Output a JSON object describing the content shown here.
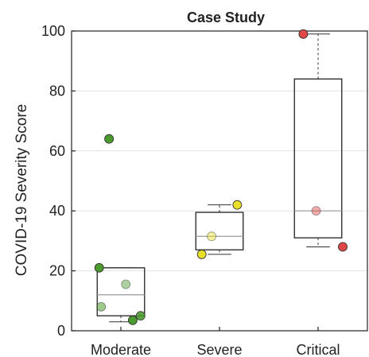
{
  "chart_data": {
    "type": "box",
    "title": "Case Study",
    "xlabel": "",
    "ylabel": "COVID-19 Severity Score",
    "ylim": [
      0,
      100
    ],
    "yticks": [
      0,
      20,
      40,
      60,
      80,
      100
    ],
    "grid": "horizontal",
    "categories": [
      "Moderate",
      "Severe",
      "Critical"
    ],
    "boxes": [
      {
        "name": "Moderate",
        "min": 3,
        "q1": 5,
        "median": 12,
        "q3": 21,
        "max": 21,
        "color": "#4a9a2e",
        "points": [
          {
            "x": -0.12,
            "y": 64,
            "opacity": 1.0
          },
          {
            "x": -0.22,
            "y": 21,
            "opacity": 1.0
          },
          {
            "x": 0.05,
            "y": 15.5,
            "opacity": 0.45
          },
          {
            "x": -0.2,
            "y": 8,
            "opacity": 0.55
          },
          {
            "x": 0.2,
            "y": 5,
            "opacity": 0.9
          },
          {
            "x": 0.12,
            "y": 3.5,
            "opacity": 1.0
          }
        ]
      },
      {
        "name": "Severe",
        "min": 25.5,
        "q1": 27,
        "median": 31.5,
        "q3": 39.5,
        "max": 42,
        "color": "#e8df2a",
        "points": [
          {
            "x": 0.18,
            "y": 42,
            "opacity": 1.0
          },
          {
            "x": -0.08,
            "y": 31.5,
            "opacity": 0.45
          },
          {
            "x": -0.18,
            "y": 25.5,
            "opacity": 1.0
          }
        ]
      },
      {
        "name": "Critical",
        "min": 28,
        "q1": 31,
        "median": 40,
        "q3": 84,
        "max": 99,
        "color": "#e04848",
        "points": [
          {
            "x": -0.15,
            "y": 99,
            "opacity": 1.0
          },
          {
            "x": -0.02,
            "y": 40,
            "opacity": 0.45
          },
          {
            "x": 0.25,
            "y": 28,
            "opacity": 1.0
          }
        ]
      }
    ]
  }
}
